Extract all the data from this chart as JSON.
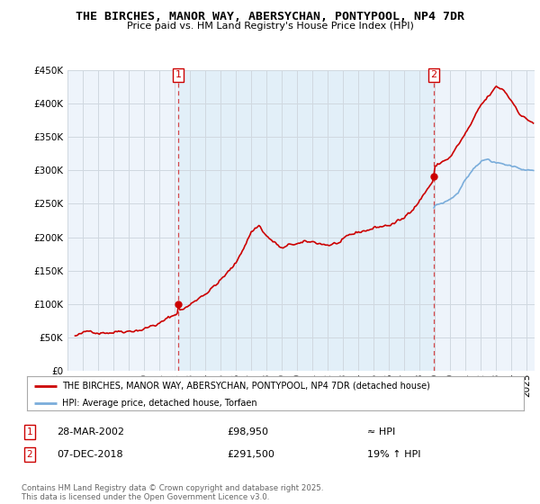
{
  "title": "THE BIRCHES, MANOR WAY, ABERSYCHAN, PONTYPOOL, NP4 7DR",
  "subtitle": "Price paid vs. HM Land Registry's House Price Index (HPI)",
  "legend_line1": "THE BIRCHES, MANOR WAY, ABERSYCHAN, PONTYPOOL, NP4 7DR (detached house)",
  "legend_line2": "HPI: Average price, detached house, Torfaen",
  "sale1_label": "1",
  "sale1_date": "28-MAR-2002",
  "sale1_price": "£98,950",
  "sale1_hpi": "≈ HPI",
  "sale2_label": "2",
  "sale2_date": "07-DEC-2018",
  "sale2_price": "£291,500",
  "sale2_hpi": "19% ↑ HPI",
  "footnote": "Contains HM Land Registry data © Crown copyright and database right 2025.\nThis data is licensed under the Open Government Licence v3.0.",
  "price_line_color": "#cc0000",
  "hpi_line_color": "#7aaddb",
  "vline_color": "#cc0000",
  "shade_color": "#ddeeff",
  "shade_alpha": 0.5,
  "background_color": "#ffffff",
  "grid_color": "#d0d8e0",
  "ylim": [
    0,
    450000
  ],
  "yticks": [
    0,
    50000,
    100000,
    150000,
    200000,
    250000,
    300000,
    350000,
    400000,
    450000
  ],
  "ytick_labels": [
    "£0",
    "£50K",
    "£100K",
    "£150K",
    "£200K",
    "£250K",
    "£300K",
    "£350K",
    "£400K",
    "£450K"
  ],
  "xlim_start": 1995.5,
  "xlim_end": 2025.5,
  "sale1_x": 2002.24,
  "sale1_y": 98950,
  "sale2_x": 2018.92,
  "sale2_y": 291500,
  "hpi_start_x": 2018.92,
  "xtick_years": [
    1995,
    1996,
    1997,
    1998,
    1999,
    2000,
    2001,
    2002,
    2003,
    2004,
    2005,
    2006,
    2007,
    2008,
    2009,
    2010,
    2011,
    2012,
    2013,
    2014,
    2015,
    2016,
    2017,
    2018,
    2019,
    2020,
    2021,
    2022,
    2023,
    2024,
    2025
  ]
}
